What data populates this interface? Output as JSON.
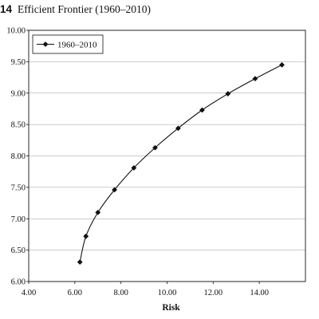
{
  "figure": {
    "number": "14",
    "title": "Efficient Frontier (1960–2010)"
  },
  "chart_data": {
    "type": "line",
    "title": "Efficient Frontier (1960–2010)",
    "xlabel": "Risk",
    "ylabel": "",
    "xlim": [
      4,
      16
    ],
    "ylim": [
      6,
      10
    ],
    "x_ticks": [
      "4.00",
      "6.00",
      "8.00",
      "10.00",
      "12.00",
      "14.00"
    ],
    "y_ticks": [
      "6.00",
      "6.50",
      "7.00",
      "7.50",
      "8.00",
      "8.50",
      "9.00",
      "9.50",
      "10.00"
    ],
    "grid": "horizontal",
    "legend_position": "top-left",
    "series": [
      {
        "name": "1960–2010",
        "marker": "diamond",
        "color": "#111111",
        "points": [
          {
            "x": 6.22,
            "y": 6.31
          },
          {
            "x": 6.48,
            "y": 6.72
          },
          {
            "x": 7.0,
            "y": 7.1
          },
          {
            "x": 7.72,
            "y": 7.46
          },
          {
            "x": 8.56,
            "y": 7.81
          },
          {
            "x": 9.48,
            "y": 8.13
          },
          {
            "x": 10.48,
            "y": 8.44
          },
          {
            "x": 11.52,
            "y": 8.73
          },
          {
            "x": 12.64,
            "y": 8.99
          },
          {
            "x": 13.82,
            "y": 9.23
          },
          {
            "x": 14.98,
            "y": 9.45
          }
        ]
      }
    ]
  }
}
